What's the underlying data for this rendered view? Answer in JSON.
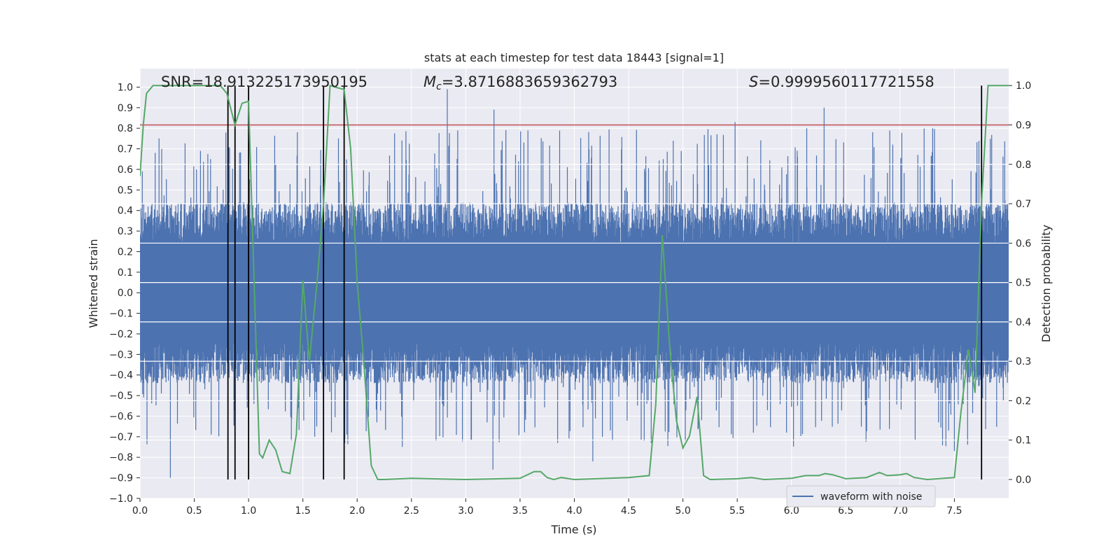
{
  "chart_data": {
    "type": "line",
    "title": "stats at each timestep for test data 18443 [signal=1]",
    "xlabel": "Time (s)",
    "ylabel": "Whitened strain",
    "ylabel_right": "Detection probability",
    "xlim": [
      0.0,
      8.0
    ],
    "ylim": [
      -1.0,
      1.09
    ],
    "ylim_right": [
      -0.048,
      1.043
    ],
    "x_ticks": [
      "0.0",
      "0.5",
      "1.0",
      "1.5",
      "2.0",
      "2.5",
      "3.0",
      "3.5",
      "4.0",
      "4.5",
      "5.0",
      "5.5",
      "6.0",
      "6.5",
      "7.0",
      "7.5"
    ],
    "y_ticks": [
      "−1.0",
      "−0.9",
      "−0.8",
      "−0.7",
      "−0.6",
      "−0.5",
      "−0.4",
      "−0.3",
      "−0.2",
      "−0.1",
      "0.0",
      "0.1",
      "0.2",
      "0.3",
      "0.4",
      "0.5",
      "0.6",
      "0.7",
      "0.8",
      "0.9",
      "1.0"
    ],
    "y_right_ticks": [
      "0.0",
      "0.1",
      "0.2",
      "0.3",
      "0.4",
      "0.5",
      "0.6",
      "0.7",
      "0.8",
      "0.9",
      "1.0"
    ],
    "annotations": {
      "snr": "SNR=18.913225173950195",
      "mc_symbol": "M",
      "mc_sub": "c",
      "mc_value": "=3.8716883659362793",
      "s_symbol": "S",
      "s_value": "=0.9999560117721558"
    },
    "legend": {
      "label": "waveform with noise",
      "location": "lower-right"
    },
    "threshold": {
      "value": 0.9,
      "axis": "right",
      "color": "#c44e52"
    },
    "vertical_markers": {
      "x": [
        0.81,
        0.875,
        1.0,
        1.69,
        1.88,
        7.75
      ],
      "y_range": [
        0.0,
        1.0
      ]
    },
    "waveform_with_noise": {
      "color": "#4c72b0",
      "x_range": [
        0.0,
        8.0
      ],
      "core_band": [
        -0.25,
        0.23
      ],
      "typical_envelope": [
        -0.4,
        0.4
      ],
      "spikes": [
        {
          "x": 0.28,
          "y": -0.9
        },
        {
          "x": 0.14,
          "y": 0.68
        },
        {
          "x": 0.2,
          "y": 0.7
        },
        {
          "x": 0.52,
          "y": 0.6
        },
        {
          "x": 0.65,
          "y": 0.65
        },
        {
          "x": 2.83,
          "y": 0.99
        },
        {
          "x": 3.26,
          "y": 0.89
        },
        {
          "x": 3.25,
          "y": -0.86
        },
        {
          "x": 5.48,
          "y": 0.83
        },
        {
          "x": 6.14,
          "y": 0.8
        },
        {
          "x": 6.3,
          "y": 0.9
        },
        {
          "x": 7.3,
          "y": 0.8
        },
        {
          "x": 7.5,
          "y": -0.77
        },
        {
          "x": 4.17,
          "y": -0.82
        }
      ]
    },
    "detection_probability": {
      "color": "#55a868",
      "x": [
        0.0,
        0.03,
        0.06,
        0.12,
        0.25,
        0.5,
        0.74,
        0.8,
        0.875,
        0.94,
        1.0,
        1.1,
        1.13,
        1.19,
        1.25,
        1.31,
        1.38,
        1.44,
        1.5,
        1.56,
        1.63,
        1.69,
        1.75,
        1.81,
        1.88,
        1.94,
        2.0,
        2.06,
        2.13,
        2.19,
        2.25,
        2.5,
        3.0,
        3.5,
        3.63,
        3.69,
        3.75,
        3.81,
        3.88,
        4.0,
        4.5,
        4.69,
        4.75,
        4.81,
        4.88,
        4.94,
        5.0,
        5.06,
        5.13,
        5.19,
        5.25,
        5.5,
        5.63,
        5.75,
        6.0,
        6.13,
        6.25,
        6.31,
        6.38,
        6.5,
        6.69,
        6.81,
        6.88,
        7.0,
        7.06,
        7.13,
        7.25,
        7.5,
        7.56,
        7.63,
        7.69,
        7.75,
        7.81,
        7.88,
        8.0
      ],
      "y": [
        0.77,
        0.9,
        0.98,
        1.0,
        1.0,
        1.0,
        1.0,
        0.98,
        0.9,
        0.955,
        0.96,
        0.065,
        0.055,
        0.1,
        0.075,
        0.02,
        0.015,
        0.115,
        0.505,
        0.3,
        0.5,
        0.7,
        1.0,
        0.995,
        0.99,
        0.84,
        0.5,
        0.3,
        0.035,
        0.0,
        0.0,
        0.003,
        0.0,
        0.003,
        0.02,
        0.02,
        0.005,
        0.0,
        0.005,
        0.0,
        0.005,
        0.01,
        0.19,
        0.62,
        0.33,
        0.15,
        0.08,
        0.11,
        0.21,
        0.01,
        0.0,
        0.002,
        0.005,
        0.0,
        0.003,
        0.01,
        0.01,
        0.015,
        0.012,
        0.002,
        0.005,
        0.018,
        0.01,
        0.012,
        0.015,
        0.005,
        0.0,
        0.005,
        0.17,
        0.33,
        0.22,
        0.7,
        1.0,
        1.0,
        1.0
      ]
    }
  }
}
